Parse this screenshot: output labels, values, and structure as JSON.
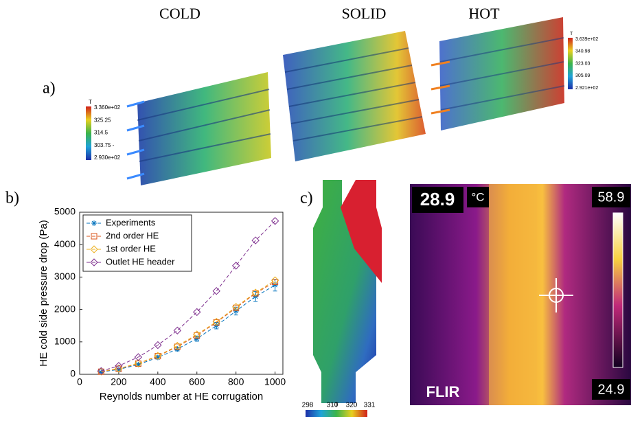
{
  "panel_a": {
    "label": "a)",
    "titles": [
      "COLD",
      "SOLID",
      "HOT"
    ],
    "cold_colorbar": {
      "title": "T",
      "labels": [
        "3.360e+02",
        "325.25",
        "314.5",
        "303.75 -",
        "2.930e+02"
      ]
    },
    "hot_colorbar": {
      "title": "T",
      "labels": [
        "3.639e+02",
        "340.98",
        "323.03",
        "305.09",
        "2.921e+02"
      ]
    }
  },
  "panel_b": {
    "label": "b)"
  },
  "panel_c": {
    "label": "c)",
    "colorbar": {
      "title": "T",
      "labels": [
        "298",
        "310",
        "320",
        "331"
      ]
    },
    "thermal": {
      "temperature": "28.9",
      "unit": "°C",
      "max": "58.9",
      "min": "24.9",
      "brand": "FLIR"
    }
  },
  "chart_data": {
    "type": "line",
    "xlabel": "Reynolds number at HE corrugation",
    "ylabel": "HE cold side pressure drop (Pa)",
    "x": [
      110,
      200,
      300,
      400,
      500,
      600,
      700,
      800,
      900,
      1000
    ],
    "xlim": [
      0,
      1040
    ],
    "xticks": [
      0,
      200,
      400,
      600,
      800,
      1000
    ],
    "ylim": [
      0,
      5000
    ],
    "yticks": [
      0,
      1000,
      2000,
      3000,
      4000,
      5000
    ],
    "legend": "upper left",
    "series": [
      {
        "name": "Experiments",
        "color": "#0072bd",
        "marker": "star",
        "values": [
          70,
          150,
          300,
          520,
          780,
          1100,
          1500,
          1950,
          2400,
          2750
        ],
        "errors": [
          20,
          30,
          40,
          50,
          60,
          80,
          100,
          120,
          150,
          180
        ]
      },
      {
        "name": "2nd order HE",
        "color": "#d95319",
        "marker": "square",
        "values": [
          80,
          170,
          330,
          560,
          850,
          1200,
          1600,
          2050,
          2500,
          2850
        ]
      },
      {
        "name": "1st order HE",
        "color": "#edb120",
        "marker": "diamond",
        "values": [
          85,
          180,
          340,
          570,
          880,
          1230,
          1620,
          2080,
          2520,
          2900
        ]
      },
      {
        "name": "Outlet HE header",
        "color": "#7e2f8e",
        "marker": "diamond",
        "values": [
          100,
          260,
          530,
          900,
          1350,
          1920,
          2570,
          3350,
          4130,
          4730
        ]
      }
    ]
  }
}
